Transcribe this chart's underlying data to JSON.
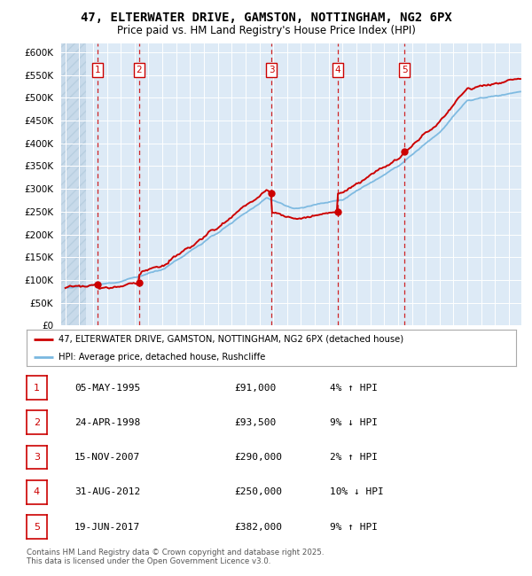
{
  "title": "47, ELTERWATER DRIVE, GAMSTON, NOTTINGHAM, NG2 6PX",
  "subtitle": "Price paid vs. HM Land Registry's House Price Index (HPI)",
  "legend_line1": "47, ELTERWATER DRIVE, GAMSTON, NOTTINGHAM, NG2 6PX (detached house)",
  "legend_line2": "HPI: Average price, detached house, Rushcliffe",
  "footer": "Contains HM Land Registry data © Crown copyright and database right 2025.\nThis data is licensed under the Open Government Licence v3.0.",
  "sale_labels": [
    "1",
    "2",
    "3",
    "4",
    "5"
  ],
  "sale_dates_num": [
    1995.34,
    1998.31,
    2007.87,
    2012.66,
    2017.47
  ],
  "sale_prices": [
    91000,
    93500,
    290000,
    250000,
    382000
  ],
  "sale_table": [
    [
      "1",
      "05-MAY-1995",
      "£91,000",
      "4% ↑ HPI"
    ],
    [
      "2",
      "24-APR-1998",
      "£93,500",
      "9% ↓ HPI"
    ],
    [
      "3",
      "15-NOV-2007",
      "£290,000",
      "2% ↑ HPI"
    ],
    [
      "4",
      "31-AUG-2012",
      "£250,000",
      "10% ↓ HPI"
    ],
    [
      "5",
      "19-JUN-2017",
      "£382,000",
      "9% ↑ HPI"
    ]
  ],
  "hpi_color": "#7ab8e0",
  "price_color": "#cc0000",
  "sale_marker_color": "#cc0000",
  "dashed_line_color": "#cc0000",
  "background_chart": "#ddeaf6",
  "grid_color": "#ffffff",
  "ylim": [
    0,
    620000
  ],
  "yticks": [
    0,
    50000,
    100000,
    150000,
    200000,
    250000,
    300000,
    350000,
    400000,
    450000,
    500000,
    550000,
    600000
  ],
  "xmin": 1992.7,
  "xmax": 2025.9
}
